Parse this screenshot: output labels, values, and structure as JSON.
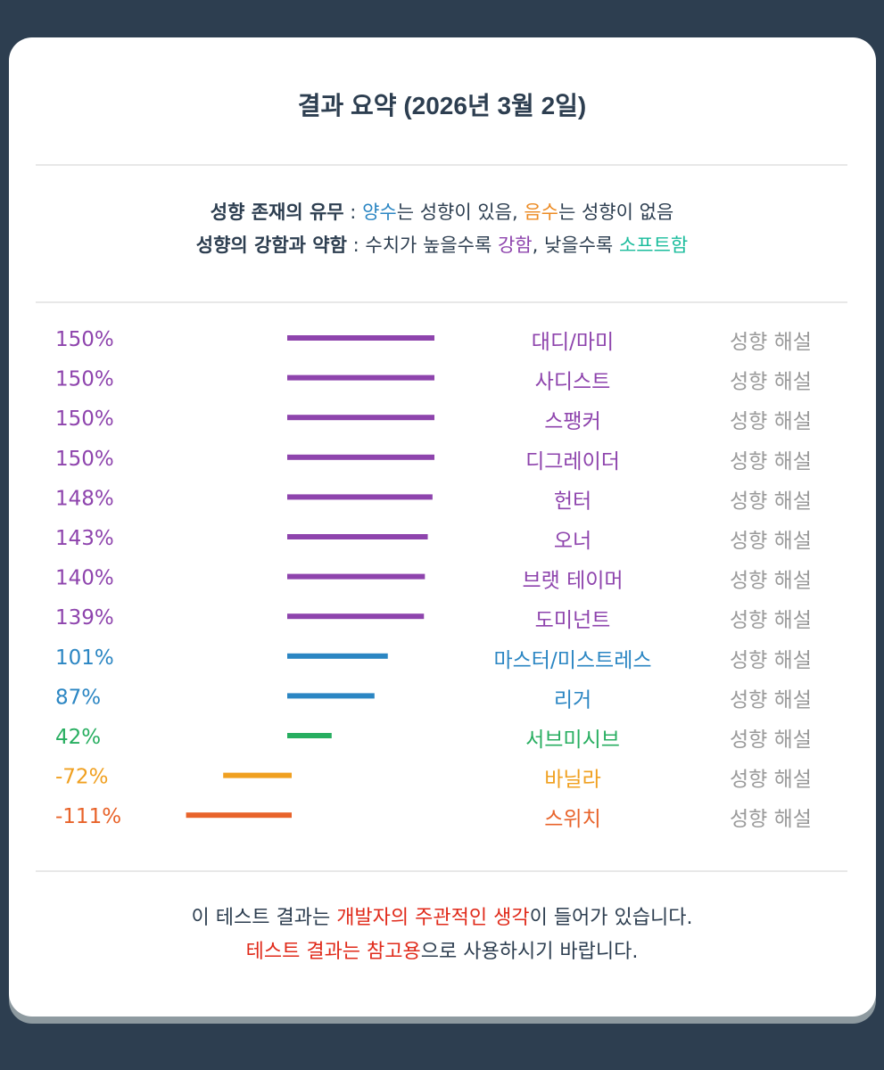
{
  "title": "결과 요약 (2026년 3월 2일)",
  "legend": {
    "line1": {
      "label": "성향 존재의 유무",
      "sep": " : ",
      "positive": "양수",
      "positive_rest": "는 성향이 있음, ",
      "negative": "음수",
      "negative_rest": "는 성향이 없음"
    },
    "line2": {
      "label": "성향의 강함과 약함",
      "sep": " : 수치가 높을수록 ",
      "strong": "강함",
      "mid": ", 낮을수록 ",
      "soft": "소프트함"
    }
  },
  "link_label": "성향 해설",
  "colors": {
    "purple": "#8e44ad",
    "blue": "#2b86c3",
    "green": "#27ae60",
    "orange": "#f0a020",
    "red_orange": "#e8632a",
    "accent_red": "#e02a1a"
  },
  "chart_data": {
    "type": "bar",
    "orientation": "horizontal",
    "categories": [
      "대디/마미",
      "사디스트",
      "스팽커",
      "디그레이더",
      "헌터",
      "오너",
      "브랫 테이머",
      "도미넌트",
      "마스터/미스트레스",
      "리거",
      "서브미시브",
      "바닐라",
      "스위치"
    ],
    "values": [
      150,
      150,
      150,
      150,
      148,
      143,
      140,
      139,
      101,
      87,
      42,
      -72,
      -111
    ],
    "value_labels": [
      "150%",
      "150%",
      "150%",
      "150%",
      "148%",
      "143%",
      "140%",
      "139%",
      "101%",
      "87%",
      "42%",
      "-72%",
      "-111%"
    ],
    "series_colors": [
      "#8e44ad",
      "#8e44ad",
      "#8e44ad",
      "#8e44ad",
      "#8e44ad",
      "#8e44ad",
      "#8e44ad",
      "#8e44ad",
      "#2b86c3",
      "#2b86c3",
      "#27ae60",
      "#f0a020",
      "#e8632a"
    ],
    "unit": "%"
  },
  "footer": {
    "line1_a": "이 테스트 결과는 ",
    "line1_b": "개발자의 주관적인 생각",
    "line1_c": "이 들어가 있습니다.",
    "line2_a": "테스트 결과는 참고용",
    "line2_b": "으로 사용하시기 바랍니다."
  }
}
